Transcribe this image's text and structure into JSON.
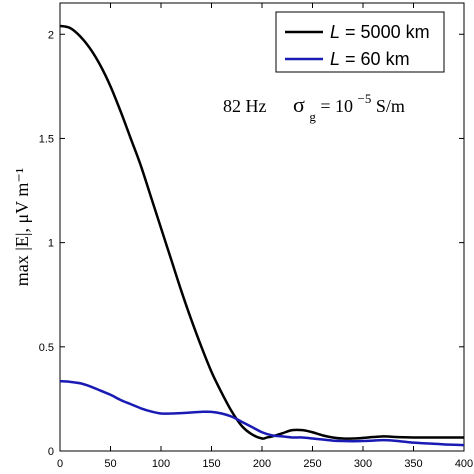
{
  "chart_data": {
    "type": "line",
    "ylabel": "max |E|,  μV m⁻¹",
    "annotation": {
      "freq": "82 Hz",
      "sigma": "σ",
      "sigma_sub": "g",
      "eq": " = 10",
      "exp": "−5",
      "unit": " S/m"
    },
    "xlim": [
      0,
      400
    ],
    "ylim": [
      0,
      2.15
    ],
    "x_ticks": [
      0,
      50,
      100,
      150,
      200,
      250,
      300,
      350,
      400
    ],
    "x_tick_labels": [
      "0",
      "50",
      "100",
      "150",
      "200",
      "250",
      "300",
      "350",
      "400"
    ],
    "y_ticks": [
      0,
      0.5,
      1,
      1.5,
      2
    ],
    "y_tick_labels": [
      "0",
      "0.5",
      "1",
      "1.5",
      "2"
    ],
    "legend_position": "top-right",
    "series": [
      {
        "legend_italic": "L",
        "legend_rest": " = 5000 km",
        "color": "#000000",
        "x": [
          0,
          10,
          20,
          30,
          40,
          50,
          60,
          70,
          80,
          90,
          100,
          110,
          120,
          130,
          140,
          150,
          160,
          170,
          180,
          190,
          200,
          205,
          210,
          220,
          230,
          240,
          250,
          260,
          270,
          280,
          290,
          300,
          310,
          320,
          330,
          340,
          350,
          360,
          370,
          380,
          390,
          400
        ],
        "y": [
          2.04,
          2.03,
          1.99,
          1.93,
          1.85,
          1.75,
          1.63,
          1.5,
          1.37,
          1.22,
          1.07,
          0.92,
          0.77,
          0.63,
          0.5,
          0.38,
          0.28,
          0.19,
          0.12,
          0.08,
          0.06,
          0.065,
          0.07,
          0.085,
          0.1,
          0.1,
          0.09,
          0.075,
          0.065,
          0.06,
          0.06,
          0.063,
          0.067,
          0.07,
          0.068,
          0.066,
          0.065,
          0.065,
          0.065,
          0.065,
          0.065,
          0.065
        ]
      },
      {
        "legend_italic": "L",
        "legend_rest": " = 60 km",
        "color": "#1a1ab4",
        "x": [
          0,
          10,
          20,
          30,
          40,
          50,
          60,
          70,
          80,
          90,
          100,
          110,
          120,
          130,
          140,
          150,
          160,
          170,
          180,
          190,
          200,
          210,
          220,
          230,
          240,
          250,
          260,
          270,
          280,
          290,
          300,
          310,
          320,
          330,
          340,
          350,
          360,
          370,
          380,
          390,
          400
        ],
        "y": [
          0.335,
          0.332,
          0.325,
          0.31,
          0.29,
          0.27,
          0.245,
          0.225,
          0.205,
          0.19,
          0.18,
          0.18,
          0.182,
          0.185,
          0.188,
          0.188,
          0.18,
          0.165,
          0.14,
          0.115,
          0.09,
          0.075,
          0.07,
          0.065,
          0.065,
          0.06,
          0.055,
          0.05,
          0.048,
          0.047,
          0.048,
          0.05,
          0.052,
          0.05,
          0.045,
          0.04,
          0.037,
          0.035,
          0.032,
          0.03,
          0.028
        ]
      }
    ]
  }
}
